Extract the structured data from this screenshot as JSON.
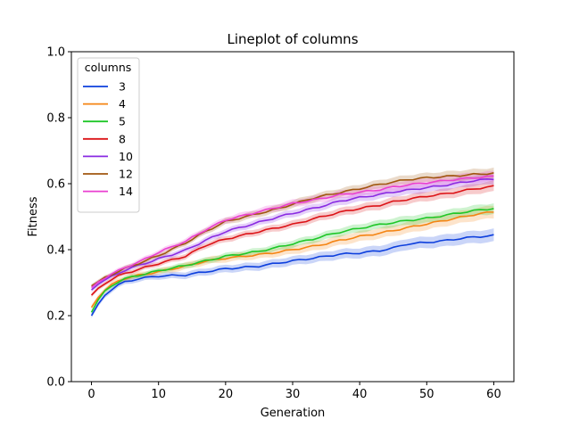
{
  "chart_data": {
    "type": "line",
    "title": "Lineplot of columns",
    "xlabel": "Generation",
    "ylabel": "Fitness",
    "xlim": [
      -3,
      63
    ],
    "ylim": [
      0.0,
      1.0
    ],
    "xticks": [
      0,
      10,
      20,
      30,
      40,
      50,
      60
    ],
    "yticks": [
      0.0,
      0.2,
      0.4,
      0.6,
      0.8,
      1.0
    ],
    "xtick_labels": [
      "0",
      "10",
      "20",
      "30",
      "40",
      "50",
      "60"
    ],
    "ytick_labels": [
      "0.0",
      "0.2",
      "0.4",
      "0.6",
      "0.8",
      "1.0"
    ],
    "legend_title": "columns",
    "legend_position": "upper-left",
    "grid": false,
    "confidence_band": true,
    "x_key_points": [
      0,
      1,
      2,
      3,
      4,
      5,
      7,
      10,
      14,
      17,
      20,
      25,
      28,
      30,
      33,
      35,
      37,
      40,
      43,
      45,
      47,
      50,
      53,
      55,
      57,
      60
    ],
    "series": [
      {
        "name": "3",
        "color": "#0d3fdd",
        "ci": 0.012,
        "values": [
          0.2,
          0.235,
          0.262,
          0.28,
          0.293,
          0.302,
          0.312,
          0.32,
          0.323,
          0.333,
          0.342,
          0.35,
          0.36,
          0.366,
          0.374,
          0.38,
          0.386,
          0.39,
          0.397,
          0.405,
          0.417,
          0.422,
          0.428,
          0.434,
          0.438,
          0.443
        ]
      },
      {
        "name": "4",
        "color": "#f48413",
        "ci": 0.012,
        "values": [
          0.225,
          0.255,
          0.278,
          0.293,
          0.305,
          0.313,
          0.322,
          0.333,
          0.35,
          0.365,
          0.374,
          0.385,
          0.393,
          0.4,
          0.41,
          0.418,
          0.428,
          0.44,
          0.45,
          0.458,
          0.466,
          0.478,
          0.49,
          0.498,
          0.506,
          0.515
        ]
      },
      {
        "name": "5",
        "color": "#1fc728",
        "ci": 0.01,
        "values": [
          0.21,
          0.248,
          0.273,
          0.29,
          0.303,
          0.312,
          0.322,
          0.336,
          0.352,
          0.366,
          0.38,
          0.395,
          0.408,
          0.418,
          0.432,
          0.443,
          0.453,
          0.465,
          0.476,
          0.482,
          0.488,
          0.495,
          0.505,
          0.512,
          0.518,
          0.525
        ]
      },
      {
        "name": "8",
        "color": "#dc1317",
        "ci": 0.01,
        "values": [
          0.262,
          0.283,
          0.298,
          0.31,
          0.32,
          0.328,
          0.34,
          0.358,
          0.38,
          0.413,
          0.432,
          0.455,
          0.468,
          0.476,
          0.493,
          0.503,
          0.513,
          0.525,
          0.535,
          0.545,
          0.552,
          0.562,
          0.57,
          0.577,
          0.584,
          0.592
        ]
      },
      {
        "name": "10",
        "color": "#8a2be2",
        "ci": 0.01,
        "values": [
          0.278,
          0.295,
          0.308,
          0.318,
          0.328,
          0.338,
          0.352,
          0.372,
          0.398,
          0.428,
          0.455,
          0.483,
          0.5,
          0.51,
          0.525,
          0.535,
          0.547,
          0.558,
          0.567,
          0.575,
          0.58,
          0.588,
          0.596,
          0.603,
          0.609,
          0.615
        ]
      },
      {
        "name": "12",
        "color": "#a0560f",
        "ci": 0.01,
        "values": [
          0.29,
          0.303,
          0.315,
          0.325,
          0.334,
          0.343,
          0.358,
          0.382,
          0.42,
          0.455,
          0.485,
          0.51,
          0.525,
          0.538,
          0.556,
          0.565,
          0.573,
          0.585,
          0.598,
          0.605,
          0.612,
          0.618,
          0.622,
          0.625,
          0.628,
          0.632
        ]
      },
      {
        "name": "14",
        "color": "#ea3fd0",
        "ci": 0.01,
        "values": [
          0.285,
          0.302,
          0.315,
          0.326,
          0.336,
          0.346,
          0.362,
          0.392,
          0.425,
          0.46,
          0.49,
          0.515,
          0.53,
          0.54,
          0.55,
          0.558,
          0.566,
          0.574,
          0.582,
          0.59,
          0.596,
          0.603,
          0.61,
          0.614,
          0.618,
          0.622
        ]
      }
    ]
  }
}
